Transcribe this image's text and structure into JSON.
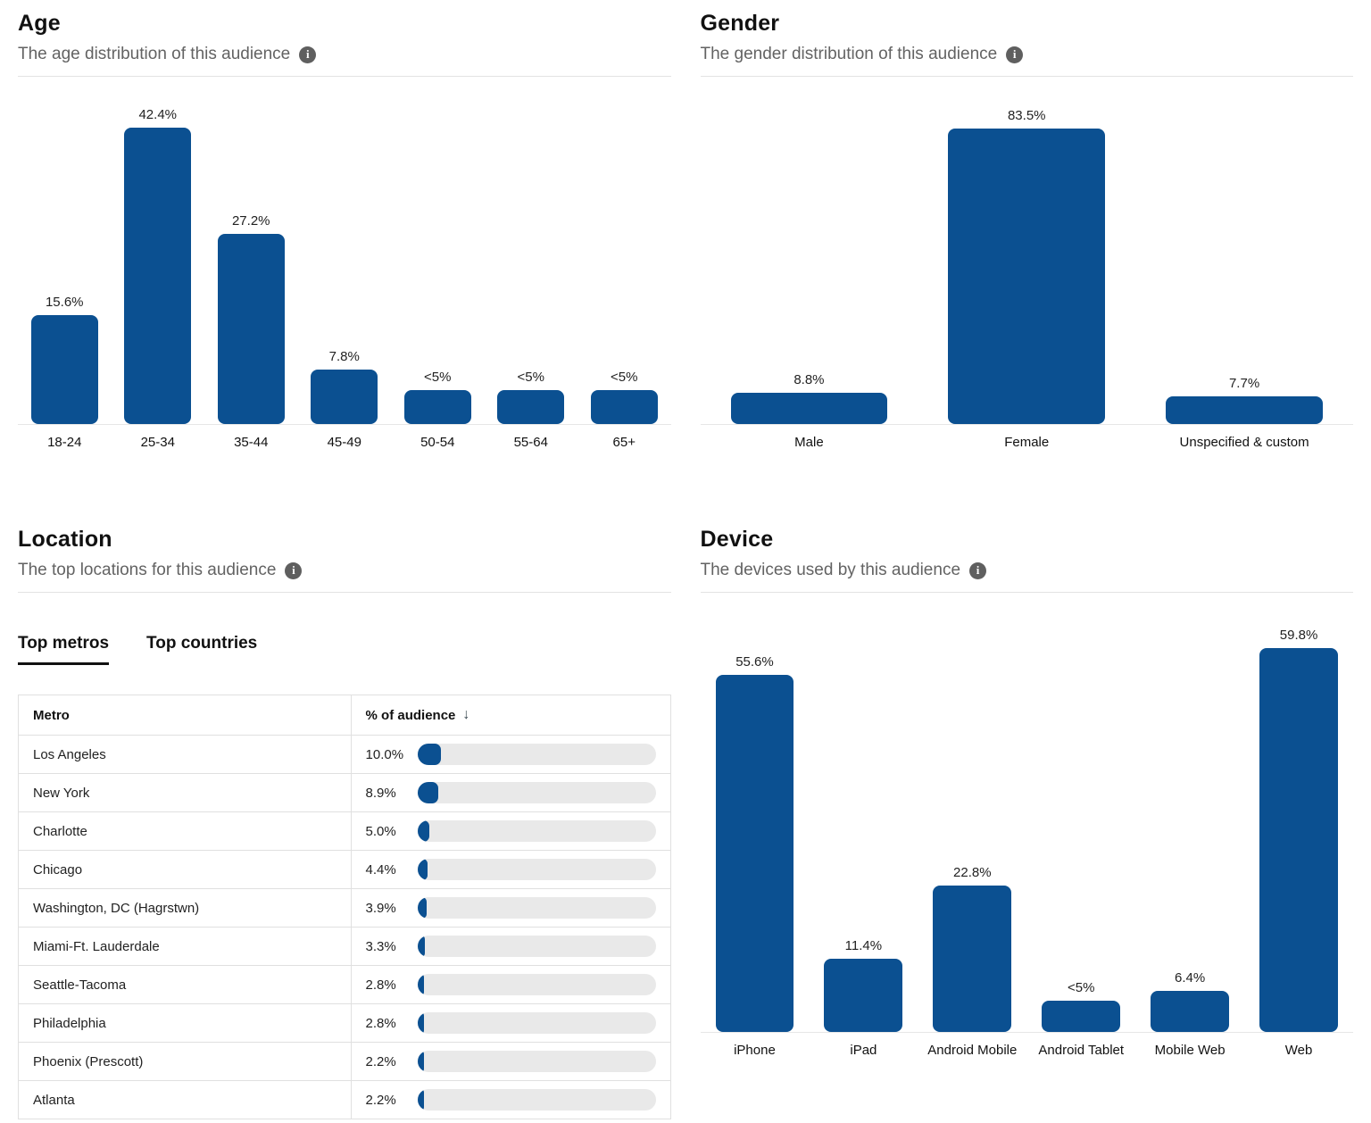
{
  "colors": {
    "bar_blue": "#0b5091",
    "track_gray": "#e9e9e9"
  },
  "panels": {
    "age": {
      "title": "Age",
      "subtitle": "The age distribution of this audience"
    },
    "gender": {
      "title": "Gender",
      "subtitle": "The gender distribution of this audience"
    },
    "location": {
      "title": "Location",
      "subtitle": "The top locations for this audience"
    },
    "device": {
      "title": "Device",
      "subtitle": "The devices used by this audience"
    }
  },
  "location_tabs": {
    "metros": "Top metros",
    "countries": "Top countries",
    "active_tab": "Top metros"
  },
  "location_table": {
    "columns": {
      "metro": "Metro",
      "pct": "% of audience"
    },
    "sort_icon": "↓",
    "rows": [
      {
        "metro": "Los Angeles",
        "pct_label": "10.0%",
        "pct": 10.0
      },
      {
        "metro": "New York",
        "pct_label": "8.9%",
        "pct": 8.9
      },
      {
        "metro": "Charlotte",
        "pct_label": "5.0%",
        "pct": 5.0
      },
      {
        "metro": "Chicago",
        "pct_label": "4.4%",
        "pct": 4.4
      },
      {
        "metro": "Washington, DC (Hagrstwn)",
        "pct_label": "3.9%",
        "pct": 3.9
      },
      {
        "metro": "Miami-Ft. Lauderdale",
        "pct_label": "3.3%",
        "pct": 3.3
      },
      {
        "metro": "Seattle-Tacoma",
        "pct_label": "2.8%",
        "pct": 2.8
      },
      {
        "metro": "Philadelphia",
        "pct_label": "2.8%",
        "pct": 2.8
      },
      {
        "metro": "Phoenix (Prescott)",
        "pct_label": "2.2%",
        "pct": 2.2
      },
      {
        "metro": "Atlanta",
        "pct_label": "2.2%",
        "pct": 2.2
      }
    ]
  },
  "chart_data": [
    {
      "id": "age",
      "type": "bar",
      "title": "Age",
      "categories": [
        "18-24",
        "25-34",
        "35-44",
        "45-49",
        "50-54",
        "55-64",
        "65+"
      ],
      "values": [
        15.6,
        42.4,
        27.2,
        7.8,
        "<5",
        "<5",
        "<5"
      ],
      "value_labels": [
        "15.6%",
        "42.4%",
        "27.2%",
        "7.8%",
        "<5%",
        "<5%",
        "<5%"
      ],
      "render_values": [
        15.6,
        42.4,
        27.2,
        7.8,
        4.8,
        4.8,
        4.8
      ],
      "ylabel": "% of audience",
      "xlabel": "",
      "grid": false,
      "legend": "none",
      "ylim": [
        0,
        42.4
      ]
    },
    {
      "id": "gender",
      "type": "bar",
      "title": "Gender",
      "categories": [
        "Male",
        "Female",
        "Unspecified & custom"
      ],
      "values": [
        8.8,
        83.5,
        7.7
      ],
      "value_labels": [
        "8.8%",
        "83.5%",
        "7.7%"
      ],
      "render_values": [
        8.8,
        83.5,
        7.7
      ],
      "ylabel": "% of audience",
      "xlabel": "",
      "grid": false,
      "legend": "none",
      "ylim": [
        0,
        83.5
      ]
    },
    {
      "id": "device",
      "type": "bar",
      "title": "Device",
      "categories": [
        "iPhone",
        "iPad",
        "Android Mobile",
        "Android Tablet",
        "Mobile Web",
        "Web"
      ],
      "values": [
        55.6,
        11.4,
        22.8,
        "<5",
        6.4,
        59.8
      ],
      "value_labels": [
        "55.6%",
        "11.4%",
        "22.8%",
        "<5%",
        "6.4%",
        "59.8%"
      ],
      "render_values": [
        55.6,
        11.4,
        22.8,
        4.8,
        6.4,
        59.8
      ],
      "ylabel": "% of audience",
      "xlabel": "",
      "grid": false,
      "legend": "none",
      "ylim": [
        0,
        59.8
      ]
    }
  ]
}
